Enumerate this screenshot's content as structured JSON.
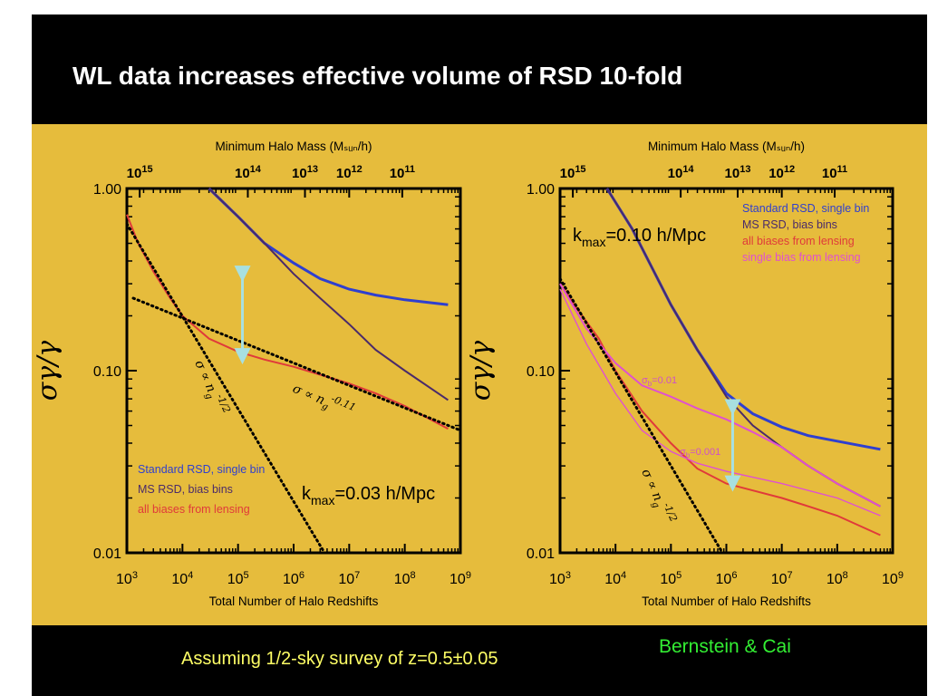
{
  "slide": {
    "title": "WL data increases effective volume of RSD 10-fold",
    "footnote": "Assuming 1/2-sky survey of z=0.5±0.05",
    "credit": "Bernstein & Cai"
  },
  "colors": {
    "blue": "#2f3fcf",
    "purple": "#4a2a6a",
    "red": "#e03a3a",
    "magenta": "#e050d0",
    "arrow": "#a8e0e0",
    "panel": "#e6bc3c"
  },
  "chart_data": [
    {
      "type": "line",
      "xscale": "log",
      "yscale": "log",
      "xlim": [
        1000,
        1000000000
      ],
      "ylim": [
        0.01,
        1.0
      ],
      "xlabel": "Total Number of Halo Redshifts",
      "ylabel": "σγ/γ",
      "top_axis_label": "Minimum Halo Mass (Msun/h)",
      "x_ticks": [
        "10^3",
        "10^4",
        "10^5",
        "10^6",
        "10^7",
        "10^8",
        "10^9"
      ],
      "y_ticks": [
        "1.00",
        "0.10",
        "0.01"
      ],
      "top_ticks": [
        {
          "label": "10^15",
          "x": 1700
        },
        {
          "label": "10^14",
          "x": 150000
        },
        {
          "label": "10^13",
          "x": 1600000
        },
        {
          "label": "10^12",
          "x": 10000000
        },
        {
          "label": "10^11",
          "x": 90000000
        }
      ],
      "kmax_label": "kmax=0.03 h/Mpc",
      "series": [
        {
          "name": "Standard RSD, single bin",
          "color": "blue",
          "x": [
            30000,
            100000,
            300000,
            1000000,
            3000000,
            10000000,
            30000000,
            100000000,
            600000000
          ],
          "y": [
            1.0,
            0.7,
            0.5,
            0.39,
            0.32,
            0.28,
            0.26,
            0.245,
            0.23
          ]
        },
        {
          "name": "MS RSD, bias bins",
          "color": "purple",
          "x": [
            30000,
            100000,
            300000,
            1000000,
            3000000,
            10000000,
            30000000,
            100000000,
            600000000
          ],
          "y": [
            1.0,
            0.7,
            0.5,
            0.34,
            0.25,
            0.18,
            0.13,
            0.1,
            0.069
          ]
        },
        {
          "name": "all biases from lensing",
          "color": "red",
          "x": [
            1000,
            1600,
            3000,
            6000,
            10000,
            30000,
            100000,
            300000,
            1000000,
            3000000,
            10000000,
            30000000,
            100000000,
            600000000
          ],
          "y": [
            0.72,
            0.5,
            0.35,
            0.25,
            0.2,
            0.15,
            0.127,
            0.115,
            0.105,
            0.095,
            0.085,
            0.075,
            0.064,
            0.048
          ]
        },
        {
          "name": "σ ∝ ng^-1/2",
          "style": "dotted",
          "x": [
            1000,
            3600000
          ],
          "y": [
            0.64,
            0.01
          ]
        },
        {
          "name": "σ ∝ ng^-0.11",
          "style": "dotted",
          "x": [
            1300,
            1000000000
          ],
          "y": [
            0.25,
            0.047
          ]
        }
      ],
      "annotations": [
        {
          "text": "σ ∝ ng^-1/2"
        },
        {
          "text": "σ ∝ ng^-0.11"
        }
      ],
      "arrow": {
        "x": 120000,
        "y_from": 0.34,
        "y_to": 0.12
      }
    },
    {
      "type": "line",
      "xscale": "log",
      "yscale": "log",
      "xlim": [
        1000,
        1000000000
      ],
      "ylim": [
        0.01,
        1.0
      ],
      "xlabel": "Total Number of Halo Redshifts",
      "ylabel": "σγ/γ",
      "top_axis_label": "Minimum Halo Mass (Msun/h)",
      "x_ticks": [
        "10^3",
        "10^4",
        "10^5",
        "10^6",
        "10^7",
        "10^8",
        "10^9"
      ],
      "y_ticks": [
        "1.00",
        "0.10",
        "0.01"
      ],
      "top_ticks": [
        {
          "label": "10^15",
          "x": 1700
        },
        {
          "label": "10^14",
          "x": 150000
        },
        {
          "label": "10^13",
          "x": 1600000
        },
        {
          "label": "10^12",
          "x": 10000000
        },
        {
          "label": "10^11",
          "x": 90000000
        }
      ],
      "kmax_label": "kmax=0.10 h/Mpc",
      "series": [
        {
          "name": "Standard RSD, single bin",
          "color": "blue",
          "x": [
            7000,
            20000,
            100000,
            300000,
            1000000,
            3000000,
            10000000,
            30000000,
            100000000,
            600000000
          ],
          "y": [
            1.0,
            0.6,
            0.23,
            0.13,
            0.075,
            0.058,
            0.049,
            0.044,
            0.041,
            0.037
          ]
        },
        {
          "name": "MS RSD, bias bins",
          "color": "purple",
          "x": [
            7000,
            20000,
            100000,
            300000,
            1000000,
            3000000,
            10000000,
            30000000,
            100000000,
            600000000
          ],
          "y": [
            1.0,
            0.6,
            0.23,
            0.13,
            0.072,
            0.05,
            0.038,
            0.03,
            0.024,
            0.018
          ]
        },
        {
          "name": "all biases from lensing",
          "color": "red",
          "x": [
            1000,
            2000,
            5000,
            10000,
            30000,
            100000,
            300000,
            1000000,
            3000000,
            10000000,
            30000000,
            100000000,
            600000000
          ],
          "y": [
            0.3,
            0.22,
            0.15,
            0.1,
            0.06,
            0.04,
            0.029,
            0.024,
            0.022,
            0.02,
            0.018,
            0.016,
            0.0125
          ]
        },
        {
          "name": "single bias from lensing",
          "color": "magenta",
          "x": [
            1000,
            3000,
            10000,
            30000,
            100000,
            300000,
            1000000,
            3000000,
            10000000,
            30000000,
            100000000,
            600000000
          ],
          "y": [
            0.3,
            0.17,
            0.11,
            0.083,
            0.072,
            0.062,
            0.054,
            0.046,
            0.038,
            0.03,
            0.024,
            0.018
          ]
        },
        {
          "name": "σb=0.001",
          "color": "magenta",
          "style": "thin",
          "x": [
            1000,
            3000,
            10000,
            30000,
            100000,
            300000,
            1000000,
            3000000,
            10000000,
            30000000,
            100000000,
            600000000
          ],
          "y": [
            0.28,
            0.14,
            0.075,
            0.047,
            0.036,
            0.031,
            0.028,
            0.026,
            0.024,
            0.022,
            0.02,
            0.016
          ]
        },
        {
          "name": "σ ∝ ng^-1/2",
          "style": "dotted",
          "x": [
            1000,
            850000
          ],
          "y": [
            0.32,
            0.01
          ]
        }
      ],
      "annotations": [
        {
          "text": "σb=0.01"
        },
        {
          "text": "σb=0.001"
        },
        {
          "text": "σ ∝ ng^-1/2"
        }
      ],
      "arrow": {
        "x": 1300000,
        "y_from": 0.063,
        "y_to": 0.024
      }
    }
  ]
}
